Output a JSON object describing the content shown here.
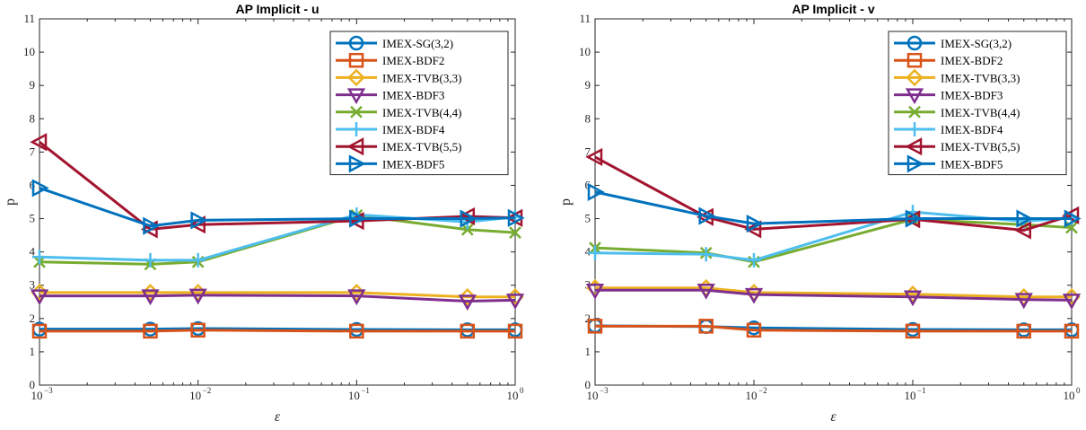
{
  "chart_data": [
    {
      "type": "line",
      "title": "AP Implicit - u",
      "xlabel": "ε",
      "ylabel": "p",
      "xscale": "log",
      "xlim": [
        0.001,
        1
      ],
      "ylim": [
        0,
        11
      ],
      "x_ticks": [
        "10^-3",
        "10^-2",
        "10^-1",
        "10^0"
      ],
      "y_ticks": [
        "0",
        "1",
        "2",
        "3",
        "4",
        "5",
        "6",
        "7",
        "8",
        "9",
        "10",
        "11"
      ],
      "legend_position": "top-right",
      "grid": false,
      "x": [
        0.001,
        0.005,
        0.01,
        0.1,
        0.5,
        1
      ],
      "series": [
        {
          "name": "IMEX-SG(3,2)",
          "color": "#0072BD",
          "marker": "circle",
          "values": [
            1.68,
            1.68,
            1.7,
            1.67,
            1.66,
            1.66
          ]
        },
        {
          "name": "IMEX-BDF2",
          "color": "#D95319",
          "marker": "square",
          "values": [
            1.62,
            1.62,
            1.65,
            1.62,
            1.62,
            1.62
          ]
        },
        {
          "name": "IMEX-TVB(3,3)",
          "color": "#EDB120",
          "marker": "diamond",
          "values": [
            2.78,
            2.78,
            2.78,
            2.78,
            2.65,
            2.65
          ]
        },
        {
          "name": "IMEX-BDF3",
          "color": "#7E2F8E",
          "marker": "triangle-down",
          "values": [
            2.68,
            2.68,
            2.7,
            2.68,
            2.52,
            2.55
          ]
        },
        {
          "name": "IMEX-TVB(4,4)",
          "color": "#77AC30",
          "marker": "x",
          "values": [
            3.7,
            3.63,
            3.7,
            5.1,
            4.67,
            4.58
          ]
        },
        {
          "name": "IMEX-BDF4",
          "color": "#4DBEEE",
          "marker": "plus",
          "values": [
            3.85,
            3.75,
            3.75,
            5.12,
            4.9,
            5.05
          ]
        },
        {
          "name": "IMEX-TVB(5,5)",
          "color": "#A2142F",
          "marker": "triangle-left",
          "values": [
            7.3,
            4.68,
            4.82,
            4.93,
            5.07,
            5.02
          ]
        },
        {
          "name": "IMEX-BDF5",
          "color": "#0072BD",
          "marker": "triangle-right",
          "values": [
            5.92,
            4.78,
            4.95,
            5.0,
            5.0,
            5.02
          ]
        }
      ]
    },
    {
      "type": "line",
      "title": "AP Implicit - v",
      "xlabel": "ε",
      "ylabel": "p",
      "xscale": "log",
      "xlim": [
        0.001,
        1
      ],
      "ylim": [
        0,
        11
      ],
      "x_ticks": [
        "10^-3",
        "10^-2",
        "10^-1",
        "10^0"
      ],
      "y_ticks": [
        "0",
        "1",
        "2",
        "3",
        "4",
        "5",
        "6",
        "7",
        "8",
        "9",
        "10",
        "11"
      ],
      "legend_position": "top-right",
      "grid": false,
      "x": [
        0.001,
        0.005,
        0.01,
        0.1,
        0.5,
        1
      ],
      "series": [
        {
          "name": "IMEX-SG(3,2)",
          "color": "#0072BD",
          "marker": "circle",
          "values": [
            1.78,
            1.76,
            1.72,
            1.67,
            1.66,
            1.66
          ]
        },
        {
          "name": "IMEX-BDF2",
          "color": "#D95319",
          "marker": "square",
          "values": [
            1.77,
            1.77,
            1.65,
            1.62,
            1.62,
            1.62
          ]
        },
        {
          "name": "IMEX-TVB(3,3)",
          "color": "#EDB120",
          "marker": "diamond",
          "values": [
            2.92,
            2.92,
            2.78,
            2.73,
            2.65,
            2.65
          ]
        },
        {
          "name": "IMEX-BDF3",
          "color": "#7E2F8E",
          "marker": "triangle-down",
          "values": [
            2.85,
            2.85,
            2.72,
            2.65,
            2.57,
            2.55
          ]
        },
        {
          "name": "IMEX-TVB(4,4)",
          "color": "#77AC30",
          "marker": "x",
          "values": [
            4.12,
            3.97,
            3.7,
            4.98,
            4.82,
            4.73
          ]
        },
        {
          "name": "IMEX-BDF4",
          "color": "#4DBEEE",
          "marker": "plus",
          "values": [
            3.97,
            3.93,
            3.75,
            5.2,
            4.92,
            5.02
          ]
        },
        {
          "name": "IMEX-TVB(5,5)",
          "color": "#A2142F",
          "marker": "triangle-left",
          "values": [
            6.85,
            5.05,
            4.68,
            4.98,
            4.65,
            5.1
          ]
        },
        {
          "name": "IMEX-BDF5",
          "color": "#0072BD",
          "marker": "triangle-right",
          "values": [
            5.8,
            5.08,
            4.85,
            5.0,
            5.0,
            5.0
          ]
        }
      ]
    }
  ]
}
